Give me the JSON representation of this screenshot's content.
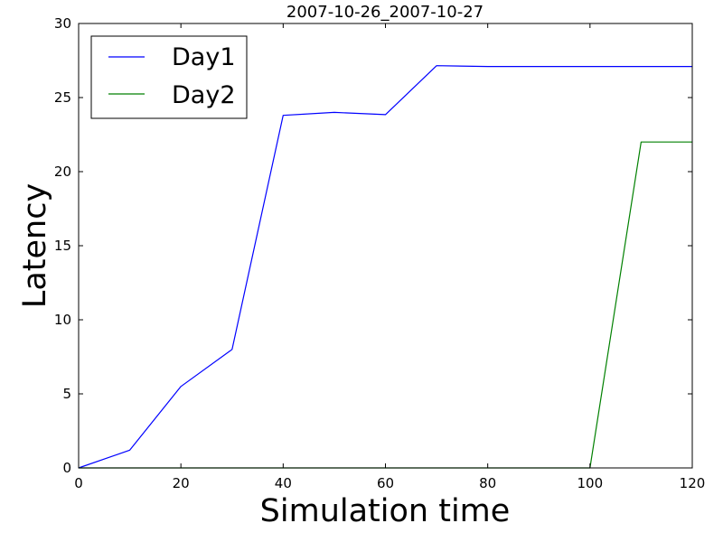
{
  "chart_data": {
    "type": "line",
    "title": "2007-10-26_2007-10-27",
    "xlabel": "Simulation time",
    "ylabel": "Latency",
    "xlim": [
      0,
      120
    ],
    "ylim": [
      0,
      30
    ],
    "x_ticks": [
      0,
      20,
      40,
      60,
      80,
      100,
      120
    ],
    "y_ticks": [
      0,
      5,
      10,
      15,
      20,
      25,
      30
    ],
    "grid": false,
    "legend_position": "top-left",
    "series": [
      {
        "name": "Day1",
        "color": "#0000ff",
        "x": [
          0,
          10,
          20,
          30,
          40,
          50,
          60,
          70,
          80,
          90,
          100,
          110,
          120
        ],
        "y": [
          0,
          1.2,
          5.5,
          8.0,
          23.8,
          24.0,
          23.85,
          27.15,
          27.1,
          27.1,
          27.1,
          27.1,
          27.1
        ]
      },
      {
        "name": "Day2",
        "color": "#008000",
        "x": [
          0,
          10,
          20,
          30,
          40,
          50,
          60,
          70,
          80,
          90,
          100,
          110,
          120
        ],
        "y": [
          0,
          0,
          0,
          0,
          0,
          0,
          0,
          0,
          0,
          0,
          0,
          22.0,
          22.0
        ]
      }
    ]
  }
}
